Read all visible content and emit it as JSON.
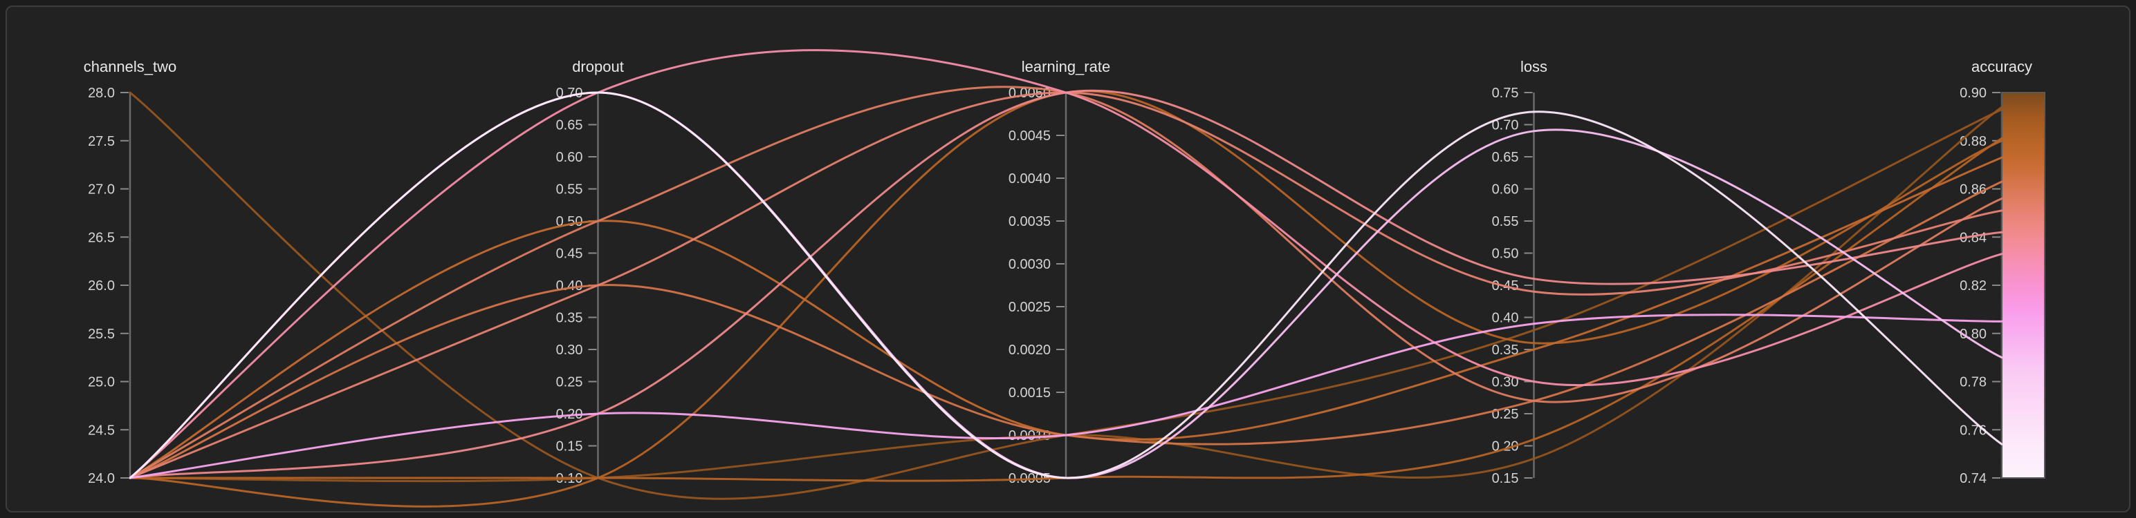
{
  "panel": {
    "background_color": "#1c1c1c",
    "surface_color": "#222222",
    "border_color": "#3d3d3d",
    "axis_line_color": "#6b6b6b",
    "tick_mark_color": "#8a8a8a",
    "tick_label_color": "#d4d4d4",
    "axis_title_color": "#e8e8e8"
  },
  "chart_data": {
    "type": "line",
    "subtype": "parallel_coordinates",
    "color_by": "accuracy",
    "axes": [
      {
        "label": "channels_two",
        "min": 24.0,
        "max": 28.0,
        "tick_labels": [
          "24.0",
          "24.5",
          "25.0",
          "25.5",
          "26.0",
          "26.5",
          "27.0",
          "27.5",
          "28.0"
        ]
      },
      {
        "label": "dropout",
        "min": 0.1,
        "max": 0.7,
        "tick_labels": [
          "0.10",
          "0.15",
          "0.20",
          "0.25",
          "0.30",
          "0.35",
          "0.40",
          "0.45",
          "0.50",
          "0.55",
          "0.60",
          "0.65",
          "0.70"
        ]
      },
      {
        "label": "learning_rate",
        "min": 0.0005,
        "max": 0.005,
        "tick_labels": [
          "0.0005",
          "0.0010",
          "0.0015",
          "0.0020",
          "0.0025",
          "0.0030",
          "0.0035",
          "0.0040",
          "0.0045",
          "0.0050"
        ]
      },
      {
        "label": "loss",
        "min": 0.15,
        "max": 0.75,
        "tick_labels": [
          "0.15",
          "0.20",
          "0.25",
          "0.30",
          "0.35",
          "0.40",
          "0.45",
          "0.50",
          "0.55",
          "0.60",
          "0.65",
          "0.70",
          "0.75"
        ]
      },
      {
        "label": "accuracy",
        "min": 0.74,
        "max": 0.9,
        "tick_labels": [
          "0.74",
          "0.76",
          "0.78",
          "0.80",
          "0.82",
          "0.84",
          "0.86",
          "0.88",
          "0.90"
        ]
      }
    ],
    "runs": [
      {
        "channels_two": 24.0,
        "dropout": 0.7,
        "learning_rate": 0.0005,
        "loss": 0.72,
        "accuracy": 0.754
      },
      {
        "channels_two": 24.0,
        "dropout": 0.7,
        "learning_rate": 0.0005,
        "loss": 0.69,
        "accuracy": 0.79
      },
      {
        "channels_two": 24.0,
        "dropout": 0.2,
        "learning_rate": 0.001,
        "loss": 0.39,
        "accuracy": 0.805
      },
      {
        "channels_two": 24.0,
        "dropout": 0.7,
        "learning_rate": 0.005,
        "loss": 0.3,
        "accuracy": 0.833
      },
      {
        "channels_two": 24.0,
        "dropout": 0.2,
        "learning_rate": 0.005,
        "loss": 0.46,
        "accuracy": 0.842
      },
      {
        "channels_two": 24.0,
        "dropout": 0.4,
        "learning_rate": 0.005,
        "loss": 0.44,
        "accuracy": 0.851
      },
      {
        "channels_two": 24.0,
        "dropout": 0.5,
        "learning_rate": 0.005,
        "loss": 0.27,
        "accuracy": 0.856
      },
      {
        "channels_two": 24.0,
        "dropout": 0.4,
        "learning_rate": 0.001,
        "loss": 0.27,
        "accuracy": 0.863
      },
      {
        "channels_two": 24.0,
        "dropout": 0.5,
        "learning_rate": 0.001,
        "loss": 0.35,
        "accuracy": 0.873
      },
      {
        "channels_two": 24.0,
        "dropout": 0.1,
        "learning_rate": 0.005,
        "loss": 0.36,
        "accuracy": 0.88
      },
      {
        "channels_two": 24.0,
        "dropout": 0.1,
        "learning_rate": 0.0005,
        "loss": 0.21,
        "accuracy": 0.881
      },
      {
        "channels_two": 28.0,
        "dropout": 0.1,
        "learning_rate": 0.001,
        "loss": 0.38,
        "accuracy": 0.893
      },
      {
        "channels_two": 24.0,
        "dropout": 0.1,
        "learning_rate": 0.001,
        "loss": 0.18,
        "accuracy": 0.894
      }
    ],
    "colorbar": {
      "min": 0.74,
      "max": 0.9,
      "stops": [
        {
          "value": 0.74,
          "color": "#fdf3fc"
        },
        {
          "value": 0.755,
          "color": "#fde8fa"
        },
        {
          "value": 0.77,
          "color": "#fcd9f7"
        },
        {
          "value": 0.785,
          "color": "#fac9f4"
        },
        {
          "value": 0.8,
          "color": "#f9aef0"
        },
        {
          "value": 0.81,
          "color": "#f99ce9"
        },
        {
          "value": 0.82,
          "color": "#f993d2"
        },
        {
          "value": 0.83,
          "color": "#f78fb3"
        },
        {
          "value": 0.84,
          "color": "#f18b91"
        },
        {
          "value": 0.85,
          "color": "#e88374"
        },
        {
          "value": 0.86,
          "color": "#d97853"
        },
        {
          "value": 0.87,
          "color": "#c96c33"
        },
        {
          "value": 0.88,
          "color": "#b86426"
        },
        {
          "value": 0.89,
          "color": "#a25a20"
        },
        {
          "value": 0.9,
          "color": "#7c4a1d"
        }
      ]
    }
  }
}
